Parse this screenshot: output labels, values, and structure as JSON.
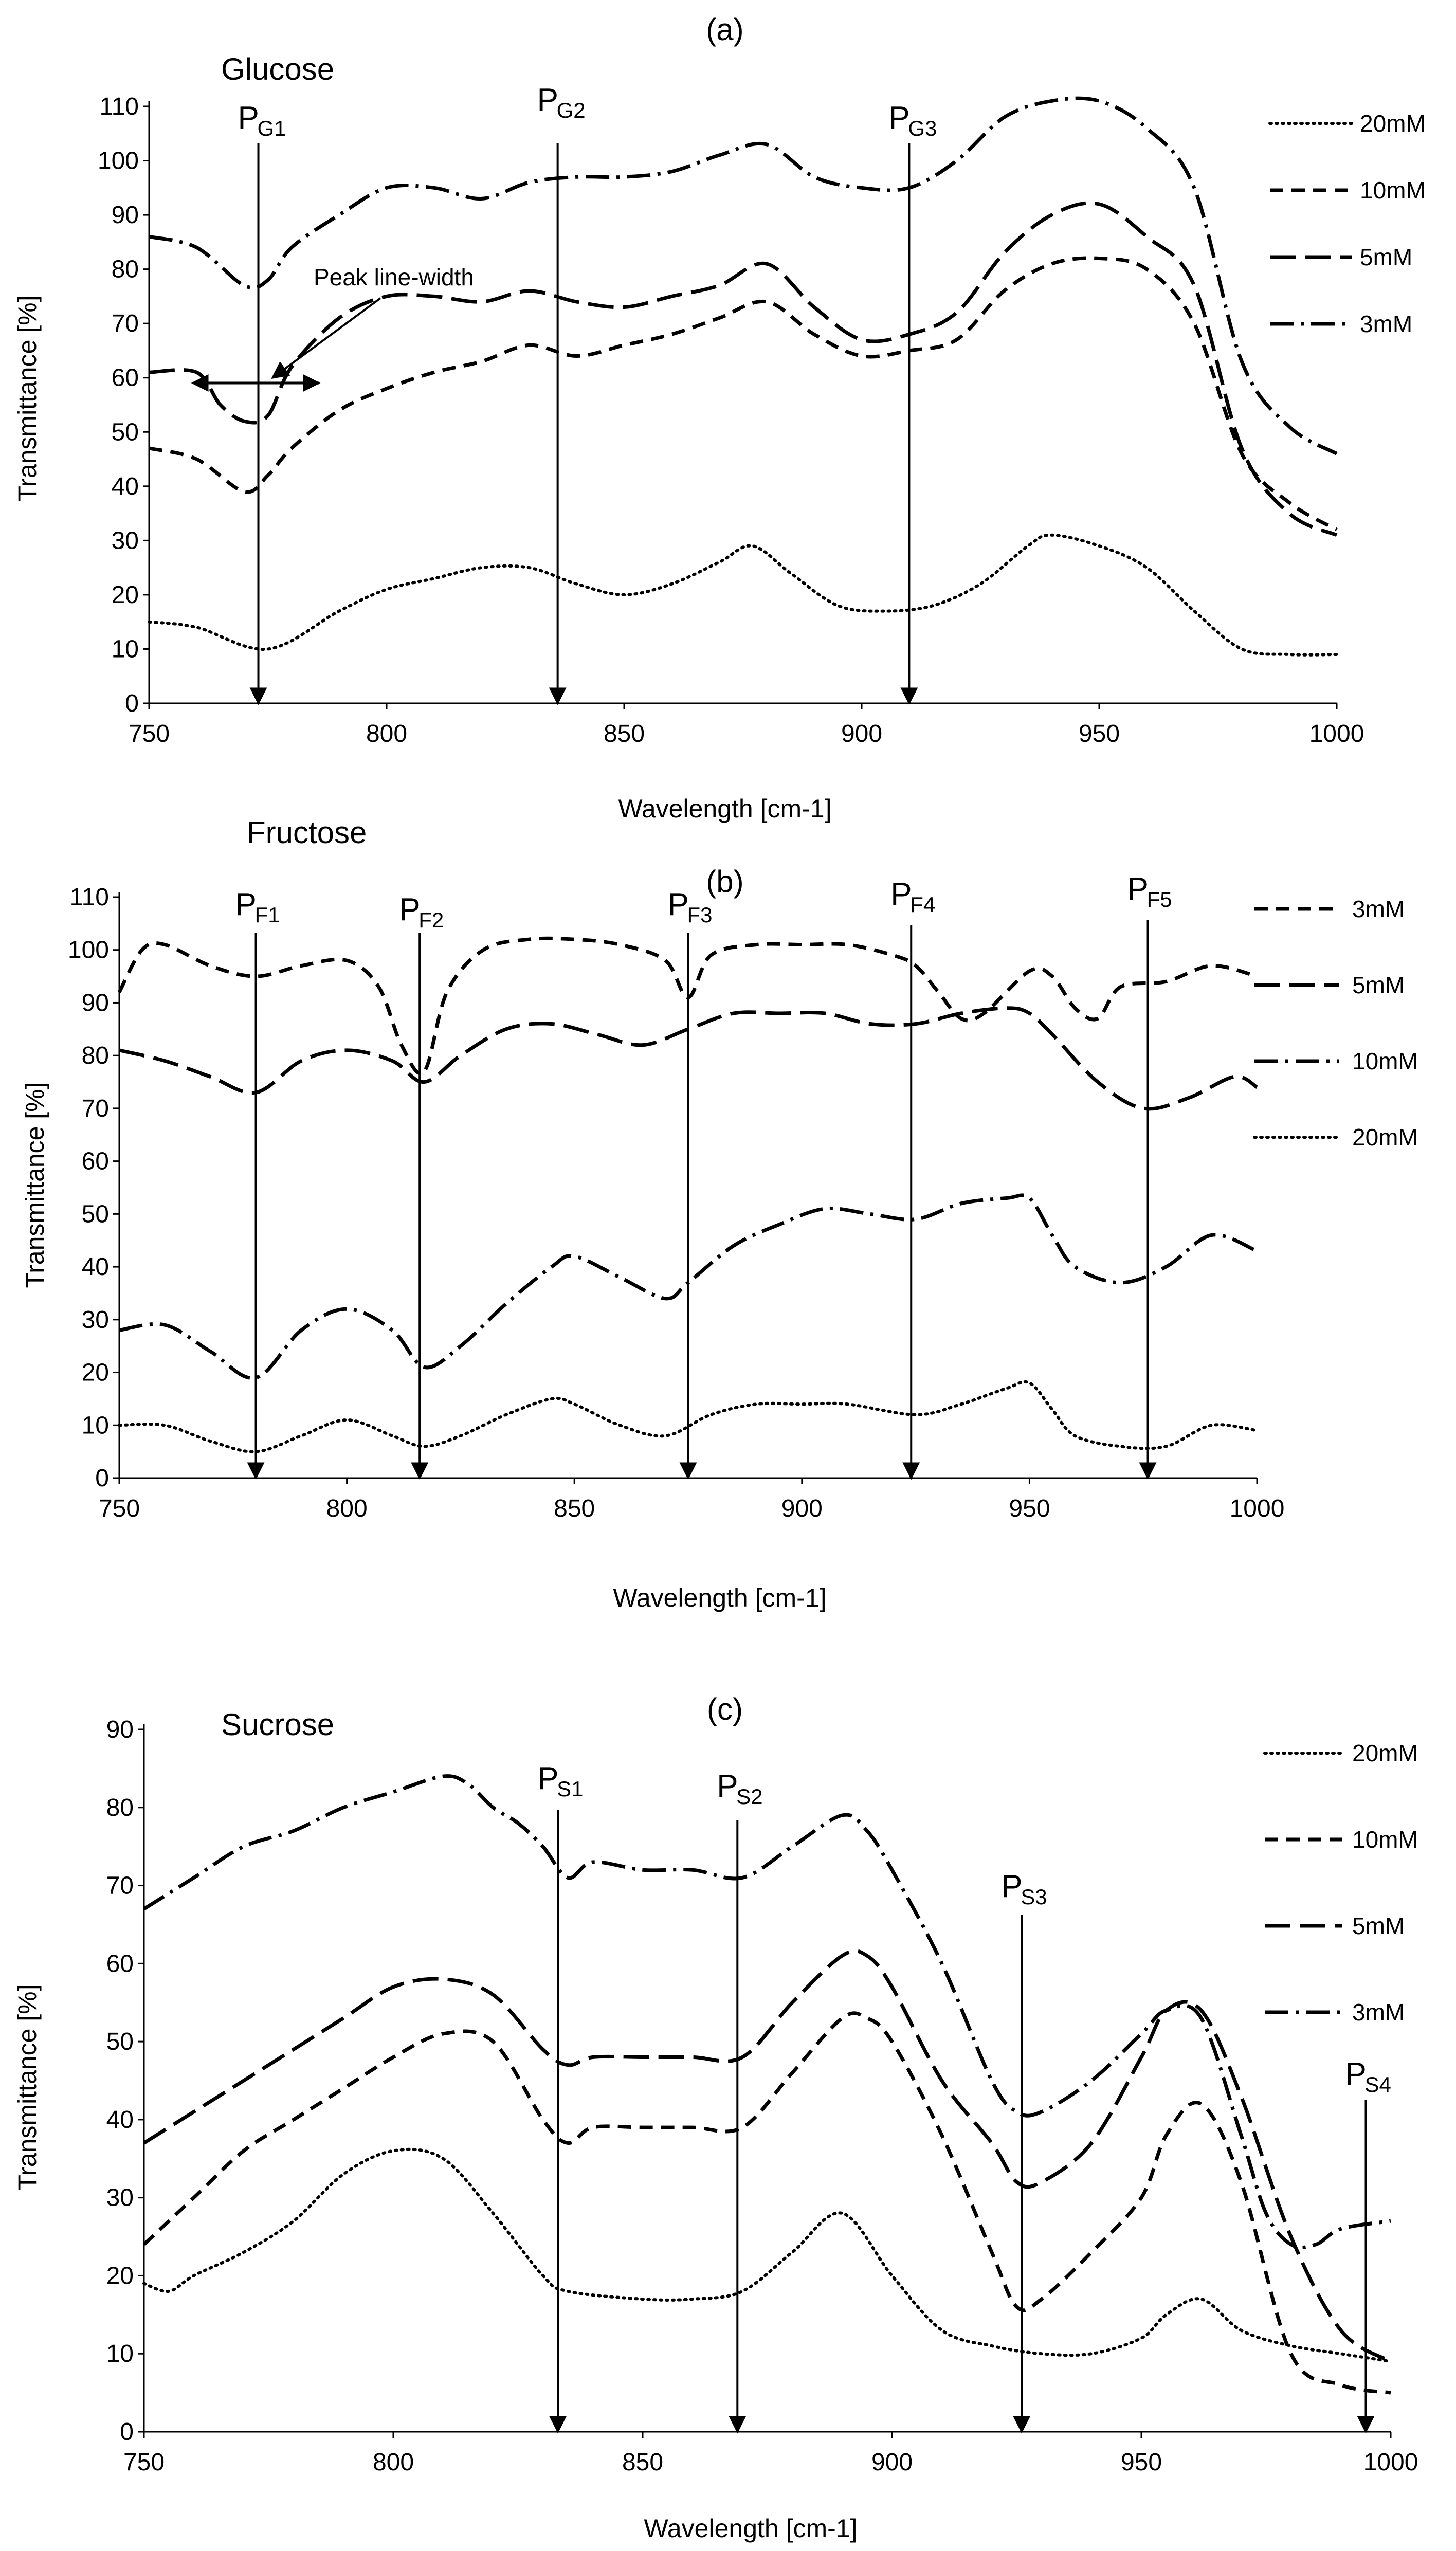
{
  "chart_data": [
    {
      "type": "line",
      "panel": "(a)",
      "title": "Glucose",
      "xlabel": "Wavelength [cm-1]",
      "ylabel": "Transmittance [%]",
      "xlim": [
        750,
        1000
      ],
      "ylim": [
        0,
        110
      ],
      "xticks": [
        750,
        800,
        850,
        900,
        950,
        1000
      ],
      "yticks": [
        0,
        10,
        20,
        30,
        40,
        50,
        60,
        70,
        80,
        90,
        100,
        110
      ],
      "legend": [
        "20mM",
        "10mM",
        "5mM",
        "3mM"
      ],
      "series": [
        {
          "name": "20mM",
          "style": "dotted",
          "x": [
            750,
            760,
            775,
            790,
            800,
            810,
            820,
            830,
            840,
            850,
            860,
            870,
            877,
            885,
            895,
            905,
            915,
            925,
            935,
            940,
            950,
            960,
            970,
            980,
            990,
            1000
          ],
          "y": [
            15,
            14,
            10,
            17,
            21,
            23,
            25,
            25,
            22,
            20,
            22,
            26,
            29,
            24,
            18,
            17,
            18,
            22,
            29,
            31,
            29,
            25,
            17,
            10,
            9,
            9
          ]
        },
        {
          "name": "10mM",
          "style": "dashed",
          "x": [
            750,
            760,
            770,
            775,
            780,
            790,
            800,
            810,
            820,
            830,
            840,
            850,
            860,
            870,
            880,
            890,
            900,
            910,
            920,
            930,
            940,
            950,
            960,
            970,
            980,
            990,
            1000
          ],
          "y": [
            47,
            45,
            39,
            42,
            47,
            54,
            58,
            61,
            63,
            66,
            64,
            66,
            68,
            71,
            74,
            68,
            64,
            65,
            67,
            76,
            81,
            82,
            80,
            70,
            46,
            37,
            32
          ]
        },
        {
          "name": "5mM",
          "style": "longdash",
          "x": [
            750,
            760,
            765,
            770,
            775,
            780,
            790,
            800,
            810,
            820,
            830,
            840,
            850,
            860,
            870,
            880,
            890,
            900,
            910,
            920,
            930,
            940,
            950,
            960,
            970,
            980,
            990,
            1000
          ],
          "y": [
            61,
            61,
            55,
            52,
            53,
            62,
            71,
            75,
            75,
            74,
            76,
            74,
            73,
            75,
            77,
            81,
            73,
            67,
            68,
            72,
            83,
            90,
            92,
            86,
            77,
            47,
            35,
            31
          ]
        },
        {
          "name": "3mM",
          "style": "dashdot",
          "x": [
            750,
            760,
            770,
            775,
            780,
            790,
            800,
            810,
            820,
            830,
            840,
            850,
            860,
            870,
            880,
            890,
            900,
            910,
            920,
            930,
            940,
            950,
            960,
            970,
            980,
            990,
            1000
          ],
          "y": [
            86,
            84,
            77,
            78,
            84,
            90,
            95,
            95,
            93,
            96,
            97,
            97,
            98,
            101,
            103,
            97,
            95,
            95,
            100,
            108,
            111,
            111,
            106,
            95,
            63,
            51,
            46
          ]
        }
      ],
      "peak_markers": [
        {
          "label": "P",
          "sub": "G1",
          "x": 773
        },
        {
          "label": "P",
          "sub": "G2",
          "x": 836
        },
        {
          "label": "P",
          "sub": "G3",
          "x": 910
        }
      ],
      "annotation": "Peak line-width"
    },
    {
      "type": "line",
      "panel": "(b)",
      "title": "Fructose",
      "xlabel": "Wavelength [cm-1]",
      "ylabel": "Transmittance [%]",
      "xlim": [
        750,
        1000
      ],
      "ylim": [
        0,
        110
      ],
      "xticks": [
        750,
        800,
        850,
        900,
        950,
        1000
      ],
      "yticks": [
        0,
        10,
        20,
        30,
        40,
        50,
        60,
        70,
        80,
        90,
        100,
        110
      ],
      "legend": [
        "3mM",
        "5mM",
        "10mM",
        "20mM"
      ],
      "series": [
        {
          "name": "3mM",
          "style": "dashed",
          "x": [
            750,
            755,
            760,
            770,
            780,
            790,
            800,
            807,
            812,
            817,
            822,
            830,
            840,
            850,
            860,
            870,
            875,
            880,
            890,
            900,
            910,
            920,
            925,
            930,
            935,
            940,
            950,
            955,
            960,
            965,
            970,
            980,
            990,
            1000
          ],
          "y": [
            92,
            100,
            101,
            97,
            95,
            97,
            98,
            93,
            82,
            77,
            92,
            100,
            102,
            102,
            101,
            98,
            91,
            99,
            101,
            101,
            101,
            99,
            97,
            92,
            87,
            88,
            96,
            95,
            89,
            87,
            93,
            94,
            97,
            95
          ]
        },
        {
          "name": "5mM",
          "style": "longdash",
          "x": [
            750,
            760,
            770,
            780,
            790,
            800,
            810,
            817,
            825,
            835,
            845,
            855,
            865,
            875,
            885,
            895,
            905,
            915,
            925,
            935,
            945,
            950,
            955,
            965,
            975,
            985,
            995,
            1000
          ],
          "y": [
            81,
            79,
            76,
            73,
            79,
            81,
            79,
            75,
            80,
            85,
            86,
            84,
            82,
            85,
            88,
            88,
            88,
            86,
            86,
            88,
            89,
            88,
            84,
            75,
            70,
            72,
            76,
            74
          ]
        },
        {
          "name": "10mM",
          "style": "dashdot",
          "x": [
            750,
            760,
            770,
            780,
            790,
            800,
            810,
            817,
            825,
            835,
            845,
            850,
            860,
            870,
            875,
            885,
            895,
            905,
            915,
            925,
            935,
            945,
            950,
            955,
            960,
            970,
            980,
            990,
            1000
          ],
          "y": [
            28,
            29,
            24,
            19,
            28,
            32,
            28,
            21,
            25,
            33,
            40,
            42,
            38,
            34,
            37,
            44,
            48,
            51,
            50,
            49,
            52,
            53,
            53,
            46,
            40,
            37,
            40,
            46,
            43
          ]
        },
        {
          "name": "20mM",
          "style": "dotted",
          "x": [
            750,
            760,
            770,
            780,
            790,
            800,
            810,
            817,
            825,
            835,
            845,
            850,
            860,
            870,
            880,
            890,
            900,
            910,
            925,
            935,
            945,
            950,
            955,
            960,
            970,
            980,
            990,
            1000
          ],
          "y": [
            10,
            10,
            7,
            5,
            8,
            11,
            8,
            6,
            8,
            12,
            15,
            14,
            10,
            8,
            12,
            14,
            14,
            14,
            12,
            14,
            17,
            18,
            13,
            8,
            6,
            6,
            10,
            9
          ]
        }
      ],
      "peak_markers": [
        {
          "label": "P",
          "sub": "F1",
          "x": 780
        },
        {
          "label": "P",
          "sub": "F2",
          "x": 816
        },
        {
          "label": "P",
          "sub": "F3",
          "x": 875
        },
        {
          "label": "P",
          "sub": "F4",
          "x": 924
        },
        {
          "label": "P",
          "sub": "F5",
          "x": 976
        }
      ]
    },
    {
      "type": "line",
      "panel": "(c)",
      "title": "Sucrose",
      "xlabel": "Wavelength [cm-1]",
      "ylabel": "Transmittance [%]",
      "xlim": [
        750,
        1000
      ],
      "ylim": [
        0,
        90
      ],
      "xticks": [
        750,
        800,
        850,
        900,
        950,
        1000
      ],
      "yticks": [
        0,
        10,
        20,
        30,
        40,
        50,
        60,
        70,
        80,
        90
      ],
      "legend": [
        "20mM",
        "10mM",
        "5mM",
        "3mM"
      ],
      "series": [
        {
          "name": "20mM",
          "style": "dotted",
          "x": [
            750,
            755,
            760,
            770,
            780,
            790,
            800,
            810,
            820,
            830,
            835,
            850,
            860,
            870,
            880,
            890,
            900,
            910,
            920,
            930,
            940,
            950,
            955,
            962,
            970,
            980,
            990,
            1000
          ],
          "y": [
            19,
            18,
            20,
            23,
            27,
            33,
            36,
            35,
            28,
            20,
            18,
            17,
            17,
            18,
            23,
            28,
            20,
            13,
            11,
            10,
            10,
            12,
            15,
            17,
            13,
            11,
            10,
            9
          ]
        },
        {
          "name": "10mM",
          "style": "dashed",
          "x": [
            750,
            760,
            770,
            780,
            790,
            800,
            810,
            820,
            830,
            835,
            840,
            850,
            860,
            870,
            880,
            890,
            895,
            900,
            910,
            920,
            925,
            930,
            940,
            950,
            955,
            962,
            970,
            980,
            990,
            1000
          ],
          "y": [
            24,
            30,
            36,
            40,
            44,
            48,
            51,
            50,
            40,
            37,
            39,
            39,
            39,
            39,
            46,
            53,
            53,
            50,
            38,
            23,
            16,
            17,
            23,
            30,
            38,
            42,
            32,
            10,
            6,
            5
          ]
        },
        {
          "name": "5mM",
          "style": "longdash",
          "x": [
            750,
            760,
            770,
            780,
            790,
            800,
            810,
            820,
            830,
            835,
            840,
            850,
            860,
            870,
            880,
            890,
            895,
            900,
            910,
            920,
            925,
            930,
            940,
            950,
            955,
            962,
            970,
            980,
            990,
            1000
          ],
          "y": [
            37,
            41,
            45,
            49,
            53,
            57,
            58,
            56,
            49,
            47,
            48,
            48,
            48,
            48,
            55,
            61,
            61,
            57,
            45,
            37,
            32,
            32,
            37,
            48,
            54,
            54,
            43,
            25,
            13,
            9
          ]
        },
        {
          "name": "3mM",
          "style": "dashdot",
          "x": [
            750,
            760,
            770,
            780,
            790,
            800,
            810,
            815,
            820,
            825,
            830,
            835,
            840,
            850,
            860,
            870,
            880,
            890,
            895,
            900,
            910,
            920,
            925,
            930,
            940,
            950,
            955,
            962,
            970,
            975,
            980,
            985,
            990,
            1000
          ],
          "y": [
            67,
            71,
            75,
            77,
            80,
            82,
            84,
            83,
            80,
            78,
            75,
            71,
            73,
            72,
            72,
            71,
            75,
            79,
            77,
            72,
            60,
            45,
            41,
            41,
            45,
            51,
            54,
            53,
            38,
            28,
            24,
            24,
            26,
            27
          ]
        }
      ],
      "peak_markers": [
        {
          "label": "P",
          "sub": "S1",
          "x": 833
        },
        {
          "label": "P",
          "sub": "S2",
          "x": 869
        },
        {
          "label": "P",
          "sub": "S3",
          "x": 926
        },
        {
          "label": "P",
          "sub": "S4",
          "x": 995
        }
      ]
    }
  ]
}
